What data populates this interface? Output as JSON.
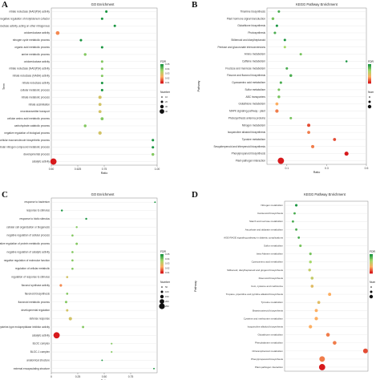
{
  "chart_data": [
    {
      "panel": "A",
      "type": "scatter",
      "title": "GO Enrichment",
      "xlabel": "Ratio",
      "ylabel": "Term",
      "xlim": [
        0.5,
        1.0
      ],
      "x_ticks": [
        "0.50",
        "0.625",
        "0.75",
        "1.00"
      ],
      "x_tick_values": [
        0.5,
        0.625,
        0.75,
        1.0
      ],
      "categories": [
        "catalytic activity",
        "developmental process",
        "cellular nitrogen compound metabolic process",
        "cellular macromolecule biosynthetic process",
        "negative regulation of biological process",
        "carbohydrate catabolic process",
        "cellular amino acid metabolic process",
        "neurotransmitter transport",
        "nitrate assimilation",
        "nitrate metabolic process",
        "cellular metabolic process",
        "nitrate reductase activity",
        "nitrate reductase (NADH) activity",
        "nitrate reductase (NAD(P)H) activity",
        "oxidoreductase activity",
        "amine metabolic process",
        "organic acid metabolic process",
        "nitrogen cycle metabolic process",
        "oxidoreductase activity",
        "oxidoreductase activity, acting on other nitrogenous",
        "negative regulation of molybdenum cofactor",
        "nitrate reductase (NAD(P)H) activity"
      ],
      "values": [
        0.51,
        0.98,
        0.98,
        0.98,
        0.73,
        0.66,
        0.74,
        0.73,
        0.73,
        0.73,
        0.74,
        0.74,
        0.74,
        0.74,
        0.74,
        0.66,
        0.74,
        0.64,
        0.53,
        0.8,
        0.74,
        0.76
      ],
      "fdr": [
        0.01,
        0.04,
        0.05,
        0.05,
        0.03,
        0.04,
        0.04,
        0.03,
        0.03,
        0.03,
        0.05,
        0.05,
        0.04,
        0.04,
        0.04,
        0.04,
        0.05,
        0.05,
        0.02,
        0.05,
        0.05,
        0.05
      ],
      "number": [
        30,
        3,
        2,
        2,
        6,
        3,
        4,
        4,
        4,
        5,
        2,
        2,
        2,
        2,
        2,
        3,
        2,
        2,
        8,
        2,
        2,
        2
      ],
      "legend_number_title": "Number",
      "legend_number_labels": [
        "10",
        "20",
        "30",
        "40"
      ],
      "legend_fdr_title": "FDR",
      "legend_fdr_labels": [
        "0.05",
        "0.04",
        "0.03",
        "0.02",
        "0.01"
      ]
    },
    {
      "panel": "B",
      "type": "scatter",
      "title": "KEGG Pathway Enrichment",
      "xlabel": "Ratio",
      "ylabel": "Pathway",
      "xlim": [
        0.0,
        0.5
      ],
      "x_ticks": [
        "0.1",
        "0.3",
        "0.5"
      ],
      "x_tick_values": [
        0.1,
        0.3,
        0.5
      ],
      "categories": [
        "Plant-pathogen interaction",
        "Phenylpropanoid biosynthesis",
        "Sesquiterpenoid and triterpenoid biosynthesis",
        "Tyrosine metabolism",
        "Isoquinoline alkaloid biosynthesis",
        "Nitrogen metabolism",
        "Photosynthesis antenna proteins",
        "MAPK signaling pathway - plant",
        "Glutathione metabolism",
        "ABC transporters",
        "Sulfur metabolism",
        "Cyanoamino acid metabolism",
        "Flavone and flavonol biosynthesis",
        "Fructose and mannose metabolism",
        "Caffeine metabolism",
        "Amino metabolism",
        "Pentose and glucuronate interconversions",
        "Stilbenoid and diarylheptanoid",
        "Photosynthesis",
        "Glutathione biosynthesis",
        "Plant hormone signal transduction",
        "Thiamine biosynthesis"
      ],
      "values": [
        0.07,
        0.4,
        0.23,
        0.34,
        0.21,
        0.21,
        0.12,
        0.05,
        0.05,
        0.06,
        0.06,
        0.07,
        0.12,
        0.1,
        0.4,
        0.17,
        0.09,
        0.09,
        0.04,
        0.05,
        0.03,
        0.06
      ],
      "fdr": [
        0.001,
        0.001,
        0.003,
        0.002,
        0.003,
        0.002,
        0.008,
        0.003,
        0.004,
        0.008,
        0.008,
        0.009,
        0.009,
        0.009,
        0.01,
        0.008,
        0.007,
        0.01,
        0.009,
        0.01,
        0.008,
        0.009
      ],
      "number": [
        30,
        10,
        5,
        4,
        4,
        5,
        2,
        6,
        4,
        3,
        2,
        2,
        3,
        2,
        1,
        2,
        2,
        2,
        2,
        2,
        3,
        2
      ],
      "legend_number_title": "Num",
      "legend_number_labels": [],
      "legend_fdr_title": "FDR",
      "legend_fdr_labels": []
    },
    {
      "panel": "C",
      "type": "scatter",
      "title": "GO Enrichment",
      "xlabel": "Ratio",
      "ylabel": "",
      "xlim": [
        0.0,
        1.0
      ],
      "x_ticks": [
        "0",
        "0.25",
        "0.50",
        "0.75"
      ],
      "x_tick_values": [
        0.0,
        0.25,
        0.5,
        0.75
      ],
      "categories": [
        "external encapsulating structure",
        "anatomical structure",
        "BLOC-1 complex",
        "BLOC complex",
        "catalytic activity",
        "cysteine-type endopeptidase inhibitor activity",
        "defense response",
        "developmental regulation",
        "flavonoid metabolic process",
        "flavonoid biosynthesis",
        "flavonol synthase activity",
        "regulation of response to stimulus",
        "regulation of cellular metabolic",
        "negative regulation of molecular function",
        "negative regulation of catalytic activity",
        "negative regulation of protein metabolic process",
        "negative regulation of cellular process",
        "cellular cell organization or biogenesis",
        "response to biotic stimulus",
        "response to stimulus",
        "response to bacterium"
      ],
      "values": [
        0.97,
        0.48,
        0.57,
        0.57,
        0.05,
        0.3,
        0.18,
        0.15,
        0.14,
        0.15,
        0.09,
        0.15,
        0.2,
        0.2,
        0.2,
        0.24,
        0.2,
        0.24,
        0.33,
        0.1,
        0.98
      ],
      "fdr": [
        0.05,
        0.05,
        0.04,
        0.04,
        0.01,
        0.04,
        0.03,
        0.03,
        0.04,
        0.04,
        0.02,
        0.03,
        0.04,
        0.04,
        0.04,
        0.04,
        0.04,
        0.04,
        0.05,
        0.05,
        0.05
      ],
      "number": [
        1,
        1,
        2,
        2,
        160,
        8,
        30,
        10,
        10,
        6,
        12,
        6,
        6,
        6,
        6,
        8,
        6,
        4,
        4,
        4,
        1
      ],
      "legend_number_title": "Number",
      "legend_number_labels": [
        "50",
        "100",
        "150",
        "200",
        "250"
      ],
      "legend_fdr_title": "FDR",
      "legend_fdr_labels": [
        "0.05",
        "0.04",
        "0.03",
        "0.02",
        "0.01"
      ]
    },
    {
      "panel": "D",
      "type": "scatter",
      "title": "KEGG Pathway Enrichment",
      "xlabel": "",
      "ylabel": "Pathway",
      "xlim": [
        0.0,
        1.0
      ],
      "x_ticks": [],
      "x_tick_values": [],
      "categories": [
        "Plant-pathogen interaction",
        "Phenylpropanoid biosynthesis",
        "Chloramphenicol metabolism",
        "Phenylalanine metabolism",
        "Glutathione metabolism",
        "Isoquinoline alkaloid biosynthesis",
        "Cysteine and methionine metabolism",
        "Brassinosteroid biosynthesis",
        "Tyrosine metabolism",
        "Tropane, piperidine and pyridine alkaloid biosynthesis",
        "CoA, cysteine and methionine",
        "Flavonoid biosynthesis",
        "Stilbenoid, diarylheptanoid and gingerol biosynthesis",
        "Cyanoamino acid metabolism",
        "beta-Alanine metabolism",
        "Sulfur metabolism",
        "AGE-RAGE signaling pathway in diabetic complications",
        "Ascorbate and aldarate metabolism",
        "Starch and sucrose metabolism",
        "Carotenoid biosynthesis",
        "Nitrogen metabolism"
      ],
      "values": [
        0.45,
        0.45,
        0.97,
        0.6,
        0.52,
        0.31,
        0.38,
        0.38,
        0.41,
        0.54,
        0.33,
        0.33,
        0.3,
        0.31,
        0.31,
        0.19,
        0.17,
        0.14,
        0.1,
        0.12,
        0.14
      ],
      "fdr": [
        0.001,
        0.003,
        0.002,
        0.003,
        0.003,
        0.004,
        0.004,
        0.004,
        0.005,
        0.004,
        0.005,
        0.006,
        0.006,
        0.007,
        0.008,
        0.008,
        0.009,
        0.009,
        0.009,
        0.009,
        0.01
      ],
      "number": [
        40,
        30,
        20,
        10,
        10,
        8,
        8,
        6,
        5,
        6,
        5,
        5,
        4,
        4,
        3,
        3,
        2,
        2,
        2,
        2,
        3
      ],
      "legend_number_title": "Num",
      "legend_number_labels": [],
      "legend_fdr_title": "FDR",
      "legend_fdr_labels": []
    }
  ],
  "panel_letters": [
    "A",
    "B",
    "C",
    "D"
  ],
  "colors": {
    "low_fdr": "#d7191c",
    "mid_fdr": "#fdae61",
    "high_fdr": "#a6d96a",
    "top_fdr": "#1a9641"
  }
}
